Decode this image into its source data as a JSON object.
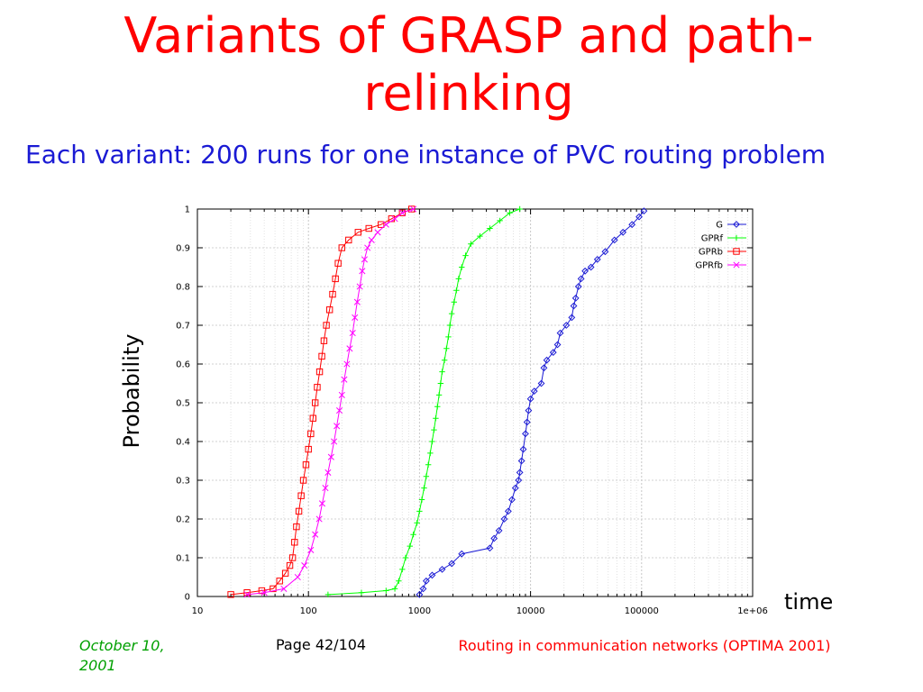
{
  "slide": {
    "title": "Variants of GRASP and path-relinking",
    "subtitle": "Each variant: 200 runs for one instance of PVC routing problem",
    "footer_date": "October 10, 2001",
    "footer_page": "Page 42/104",
    "footer_course": "Routing in communication networks (OPTIMA 2001)"
  },
  "chart_data": {
    "type": "line",
    "xlabel": "time",
    "ylabel": "Probability",
    "xscale": "log",
    "xlim": [
      10,
      1000000
    ],
    "ylim": [
      0,
      1
    ],
    "x_ticks": [
      "10",
      "100",
      "1000",
      "10000",
      "100000",
      "1e+06"
    ],
    "y_ticks": [
      "0",
      "0.1",
      "0.2",
      "0.3",
      "0.4",
      "0.5",
      "0.6",
      "0.7",
      "0.8",
      "0.9",
      "1"
    ],
    "grid": true,
    "legend_position": "top-right",
    "series": [
      {
        "name": "G",
        "color": "#1a1ad4",
        "marker": "diamond",
        "points": [
          [
            1000,
            0.005
          ],
          [
            1080,
            0.02
          ],
          [
            1150,
            0.04
          ],
          [
            1300,
            0.055
          ],
          [
            1600,
            0.07
          ],
          [
            1950,
            0.085
          ],
          [
            2400,
            0.11
          ],
          [
            4300,
            0.125
          ],
          [
            4700,
            0.15
          ],
          [
            5200,
            0.17
          ],
          [
            5800,
            0.2
          ],
          [
            6300,
            0.22
          ],
          [
            6800,
            0.25
          ],
          [
            7300,
            0.28
          ],
          [
            7800,
            0.3
          ],
          [
            8000,
            0.32
          ],
          [
            8300,
            0.35
          ],
          [
            8600,
            0.38
          ],
          [
            9000,
            0.42
          ],
          [
            9300,
            0.45
          ],
          [
            9600,
            0.48
          ],
          [
            10000,
            0.51
          ],
          [
            10800,
            0.53
          ],
          [
            12500,
            0.55
          ],
          [
            13200,
            0.59
          ],
          [
            14000,
            0.61
          ],
          [
            16000,
            0.63
          ],
          [
            17500,
            0.65
          ],
          [
            18500,
            0.68
          ],
          [
            21000,
            0.7
          ],
          [
            23500,
            0.72
          ],
          [
            24500,
            0.75
          ],
          [
            25500,
            0.77
          ],
          [
            27000,
            0.8
          ],
          [
            28500,
            0.82
          ],
          [
            31000,
            0.84
          ],
          [
            35000,
            0.85
          ],
          [
            40000,
            0.87
          ],
          [
            47000,
            0.89
          ],
          [
            57000,
            0.92
          ],
          [
            68000,
            0.94
          ],
          [
            82000,
            0.96
          ],
          [
            95000,
            0.98
          ],
          [
            105000,
            0.995
          ]
        ]
      },
      {
        "name": "GPRf",
        "color": "#00ff00",
        "marker": "plus",
        "points": [
          [
            150,
            0.005
          ],
          [
            300,
            0.01
          ],
          [
            500,
            0.015
          ],
          [
            600,
            0.02
          ],
          [
            650,
            0.04
          ],
          [
            700,
            0.07
          ],
          [
            750,
            0.1
          ],
          [
            820,
            0.13
          ],
          [
            880,
            0.16
          ],
          [
            950,
            0.19
          ],
          [
            1000,
            0.22
          ],
          [
            1050,
            0.25
          ],
          [
            1100,
            0.28
          ],
          [
            1150,
            0.31
          ],
          [
            1200,
            0.34
          ],
          [
            1250,
            0.37
          ],
          [
            1300,
            0.4
          ],
          [
            1350,
            0.43
          ],
          [
            1400,
            0.46
          ],
          [
            1450,
            0.49
          ],
          [
            1500,
            0.52
          ],
          [
            1550,
            0.55
          ],
          [
            1600,
            0.58
          ],
          [
            1680,
            0.61
          ],
          [
            1750,
            0.64
          ],
          [
            1820,
            0.67
          ],
          [
            1880,
            0.7
          ],
          [
            1950,
            0.73
          ],
          [
            2050,
            0.76
          ],
          [
            2150,
            0.79
          ],
          [
            2250,
            0.82
          ],
          [
            2400,
            0.85
          ],
          [
            2600,
            0.88
          ],
          [
            2900,
            0.91
          ],
          [
            3500,
            0.93
          ],
          [
            4300,
            0.95
          ],
          [
            5300,
            0.97
          ],
          [
            6500,
            0.99
          ],
          [
            8000,
            1.0
          ]
        ]
      },
      {
        "name": "GPRb",
        "color": "#ff0000",
        "marker": "square",
        "points": [
          [
            20,
            0.005
          ],
          [
            28,
            0.01
          ],
          [
            38,
            0.015
          ],
          [
            48,
            0.02
          ],
          [
            55,
            0.04
          ],
          [
            62,
            0.06
          ],
          [
            68,
            0.08
          ],
          [
            72,
            0.1
          ],
          [
            75,
            0.14
          ],
          [
            78,
            0.18
          ],
          [
            82,
            0.22
          ],
          [
            86,
            0.26
          ],
          [
            90,
            0.3
          ],
          [
            95,
            0.34
          ],
          [
            100,
            0.38
          ],
          [
            105,
            0.42
          ],
          [
            110,
            0.46
          ],
          [
            115,
            0.5
          ],
          [
            120,
            0.54
          ],
          [
            126,
            0.58
          ],
          [
            132,
            0.62
          ],
          [
            138,
            0.66
          ],
          [
            145,
            0.7
          ],
          [
            155,
            0.74
          ],
          [
            165,
            0.78
          ],
          [
            175,
            0.82
          ],
          [
            185,
            0.86
          ],
          [
            200,
            0.9
          ],
          [
            230,
            0.92
          ],
          [
            280,
            0.94
          ],
          [
            350,
            0.95
          ],
          [
            450,
            0.96
          ],
          [
            560,
            0.975
          ],
          [
            700,
            0.99
          ],
          [
            850,
            1.0
          ]
        ]
      },
      {
        "name": "GPRfb",
        "color": "#ff00ff",
        "marker": "cross",
        "points": [
          [
            28,
            0.005
          ],
          [
            40,
            0.01
          ],
          [
            60,
            0.02
          ],
          [
            80,
            0.05
          ],
          [
            92,
            0.08
          ],
          [
            105,
            0.12
          ],
          [
            115,
            0.16
          ],
          [
            125,
            0.2
          ],
          [
            133,
            0.24
          ],
          [
            142,
            0.28
          ],
          [
            150,
            0.32
          ],
          [
            160,
            0.36
          ],
          [
            170,
            0.4
          ],
          [
            180,
            0.44
          ],
          [
            190,
            0.48
          ],
          [
            200,
            0.52
          ],
          [
            210,
            0.56
          ],
          [
            222,
            0.6
          ],
          [
            235,
            0.64
          ],
          [
            250,
            0.68
          ],
          [
            262,
            0.72
          ],
          [
            275,
            0.76
          ],
          [
            290,
            0.8
          ],
          [
            305,
            0.84
          ],
          [
            320,
            0.87
          ],
          [
            340,
            0.9
          ],
          [
            370,
            0.92
          ],
          [
            420,
            0.94
          ],
          [
            500,
            0.96
          ],
          [
            600,
            0.975
          ],
          [
            700,
            0.99
          ],
          [
            880,
            1.0
          ]
        ]
      }
    ]
  }
}
